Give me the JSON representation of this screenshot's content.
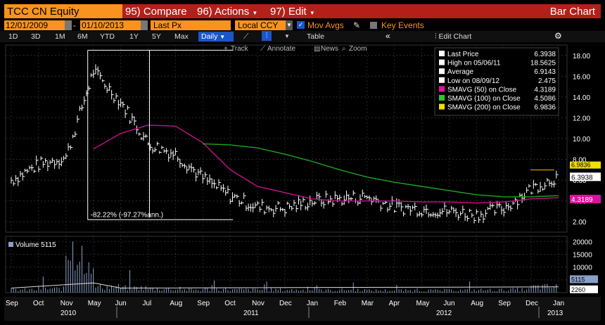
{
  "header": {
    "security": "TCC CN Equity",
    "compare": "95) Compare",
    "actions": "96) Actions",
    "edit": "97) Edit",
    "chart_type": "Bar Chart"
  },
  "settings": {
    "start_date": "12/01/2009",
    "end_date": "01/10/2013",
    "field": "Last Px",
    "currency": "Local CCY",
    "mov_avgs": "Mov Avgs",
    "key_events": "Key Events"
  },
  "periods": [
    "1D",
    "3D",
    "1M",
    "6M",
    "YTD",
    "1Y",
    "5Y",
    "Max"
  ],
  "frequency": "Daily",
  "table_label": "Table",
  "edit_chart": "Edit Chart",
  "tools": {
    "track": "Track",
    "annotate": "Annotate",
    "news": "News",
    "zoom": "Zoom"
  },
  "legend": [
    {
      "label": "Last Price",
      "value": "6.3938",
      "color": "#ffffff"
    },
    {
      "label": "High on 05/06/11",
      "value": "18.5625",
      "color": "#ffffff"
    },
    {
      "label": "Average",
      "value": "6.9143",
      "color": "#ffffff"
    },
    {
      "label": "Low on 08/09/12",
      "value": "2.475",
      "color": "#ffffff"
    },
    {
      "label": "SMAVG (50)  on Close",
      "value": "4.3189",
      "color": "#e0109f"
    },
    {
      "label": "SMAVG (100)  on Close",
      "value": "4.5086",
      "color": "#28c828"
    },
    {
      "label": "SMAVG (200)  on Close",
      "value": "6.9836",
      "color": "#f0e000"
    }
  ],
  "annotation": "-82.22% (-97.27%ann.)",
  "price_axis": [
    "18.00",
    "16.00",
    "14.00",
    "12.00",
    "10.00",
    "8.00",
    "6.00",
    "4.00",
    "2.00"
  ],
  "price_tags": {
    "last": "6.3938",
    "sma50": "4.3189",
    "sma200": "6.9836"
  },
  "volume_label": "Volume 5115",
  "volume_axis": [
    "20000",
    "15000",
    "10000",
    "5000"
  ],
  "volume_tags": {
    "volume": "5115",
    "avg": "2260"
  },
  "months": [
    "Sep",
    "Oct",
    "Nov",
    "May",
    "Jun",
    "Jul",
    "Aug",
    "Sep",
    "Oct",
    "Nov",
    "Dec",
    "Jan",
    "Feb",
    "Mar",
    "Apr",
    "May",
    "Jun",
    "Aug",
    "Sep",
    "Dec",
    "Jan"
  ],
  "years": [
    "2010",
    "2011",
    "2012",
    "2013"
  ],
  "chart_data": {
    "type": "bar",
    "title": "TCC CN Equity",
    "x": [
      "2010-09",
      "2010-10",
      "2010-11",
      "2011-05",
      "2011-06",
      "2011-07",
      "2011-08",
      "2011-09",
      "2011-10",
      "2011-11",
      "2011-12",
      "2012-01",
      "2012-02",
      "2012-03",
      "2012-04",
      "2012-05",
      "2012-06",
      "2012-08",
      "2012-09",
      "2012-12",
      "2013-01"
    ],
    "series": [
      {
        "name": "Last Price",
        "values": [
          6.0,
          7.5,
          8.2,
          16.5,
          13.5,
          9.5,
          8.5,
          6.2,
          4.5,
          3.4,
          3.3,
          4.0,
          4.2,
          4.4,
          3.4,
          3.2,
          3.0,
          2.7,
          3.3,
          5.2,
          6.39
        ]
      },
      {
        "name": "SMAVG (50)  on Close",
        "values": [
          null,
          null,
          null,
          9.0,
          10.5,
          11.3,
          11.2,
          9.6,
          7.0,
          5.4,
          4.8,
          4.2,
          4.0,
          4.0,
          4.0,
          3.9,
          3.9,
          3.8,
          3.9,
          4.2,
          4.32
        ]
      },
      {
        "name": "SMAVG (100)  on Close",
        "values": [
          null,
          null,
          null,
          null,
          null,
          null,
          null,
          9.5,
          9.4,
          9.1,
          8.5,
          7.8,
          7.0,
          6.3,
          5.8,
          5.4,
          5.0,
          4.6,
          4.4,
          4.4,
          4.51
        ]
      }
    ],
    "volume": [
      1500,
      2000,
      20000,
      3000,
      2500,
      2000,
      1500,
      1800,
      1500,
      1500,
      1400,
      1300,
      1500,
      1200,
      1200,
      1200,
      1300,
      1400,
      1600,
      3000,
      5115
    ],
    "ylim": [
      1,
      19
    ],
    "volume_ylim": [
      0,
      22000
    ]
  }
}
